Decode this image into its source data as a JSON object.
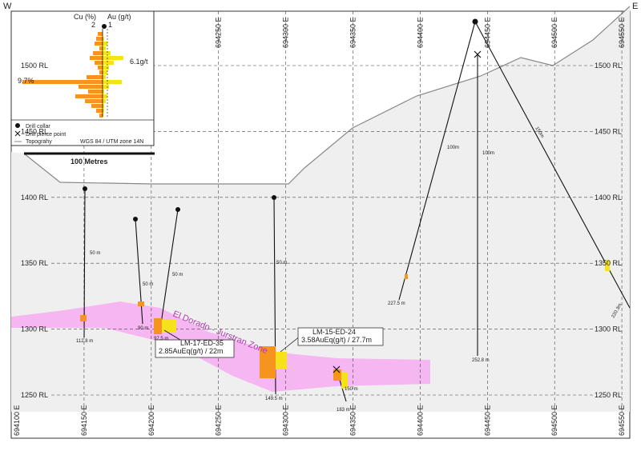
{
  "corners": {
    "west": "W",
    "east": "E"
  },
  "eastings": [
    "694100 E",
    "694150 E",
    "694200 E",
    "694250 E",
    "694300 E",
    "694350 E",
    "694400 E",
    "694450 E",
    "694500 E",
    "694550 E"
  ],
  "rl": [
    "1500 RL",
    "1450 RL",
    "1400 RL",
    "1350 RL",
    "1300 RL",
    "1250 RL"
  ],
  "legend": {
    "cu_axis": "Cu (%)",
    "au_axis": "Au (g/t)",
    "cu_tick": "2",
    "au_tick": "1",
    "au_max": "6.1g/t",
    "cu_max": "9.7%",
    "items": [
      "Drill collar",
      "Drill pierce point",
      "Topograhy"
    ],
    "projection": "WGS 84 / UTM zone 14N",
    "scale": "100 Metres"
  },
  "zone": "El Dorado - Jurstran Zone",
  "callouts": [
    {
      "hole": "LM-17-ED-35",
      "result": "2.85AuEq(g/t) / 22m"
    },
    {
      "hole": "LM-15-ED-24",
      "result": "3.58AuEq(g/t) / 27.7m"
    }
  ],
  "depth_labels": [
    "50 m",
    "112.8 m",
    "50 m",
    "90 m",
    "97.5 m",
    "50 m",
    "50 m",
    "149.5 m",
    "150 m",
    "183 m",
    "100m",
    "227.5 m",
    "100m",
    "252.8 m",
    "150m",
    "220.3m"
  ]
}
